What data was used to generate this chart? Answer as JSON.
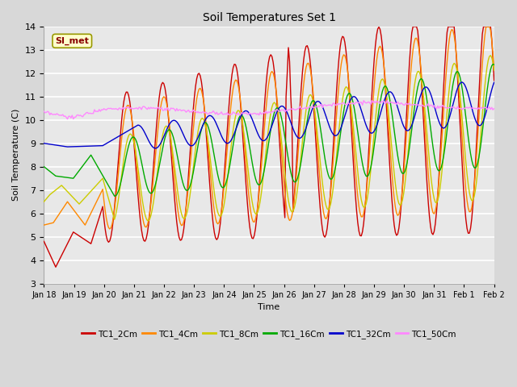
{
  "title": "Soil Temperatures Set 1",
  "xlabel": "Time",
  "ylabel": "Soil Temperature (C)",
  "ylim": [
    3.0,
    14.0
  ],
  "yticks": [
    3.0,
    4.0,
    5.0,
    6.0,
    7.0,
    8.0,
    9.0,
    10.0,
    11.0,
    12.0,
    13.0,
    14.0
  ],
  "xtick_labels": [
    "Jan 18",
    "Jan 19",
    "Jan 20",
    "Jan 21",
    "Jan 22",
    "Jan 23",
    "Jan 24",
    "Jan 25",
    "Jan 26",
    "Jan 27",
    "Jan 28",
    "Jan 29",
    "Jan 30",
    "Jan 31",
    "Feb 1",
    "Feb 2"
  ],
  "series_colors": [
    "#cc0000",
    "#ff8800",
    "#cccc00",
    "#00aa00",
    "#0000cc",
    "#ff88ff"
  ],
  "series_labels": [
    "TC1_2Cm",
    "TC1_4Cm",
    "TC1_8Cm",
    "TC1_16Cm",
    "TC1_32Cm",
    "TC1_50Cm"
  ],
  "fig_facecolor": "#d8d8d8",
  "ax_facecolor": "#e8e8e8",
  "grid_color": "#ffffff",
  "annotation_text": "SI_met",
  "annotation_bg": "#ffffcc",
  "annotation_border": "#999900",
  "annotation_color": "#880000",
  "figsize": [
    6.4,
    4.8
  ],
  "dpi": 100
}
